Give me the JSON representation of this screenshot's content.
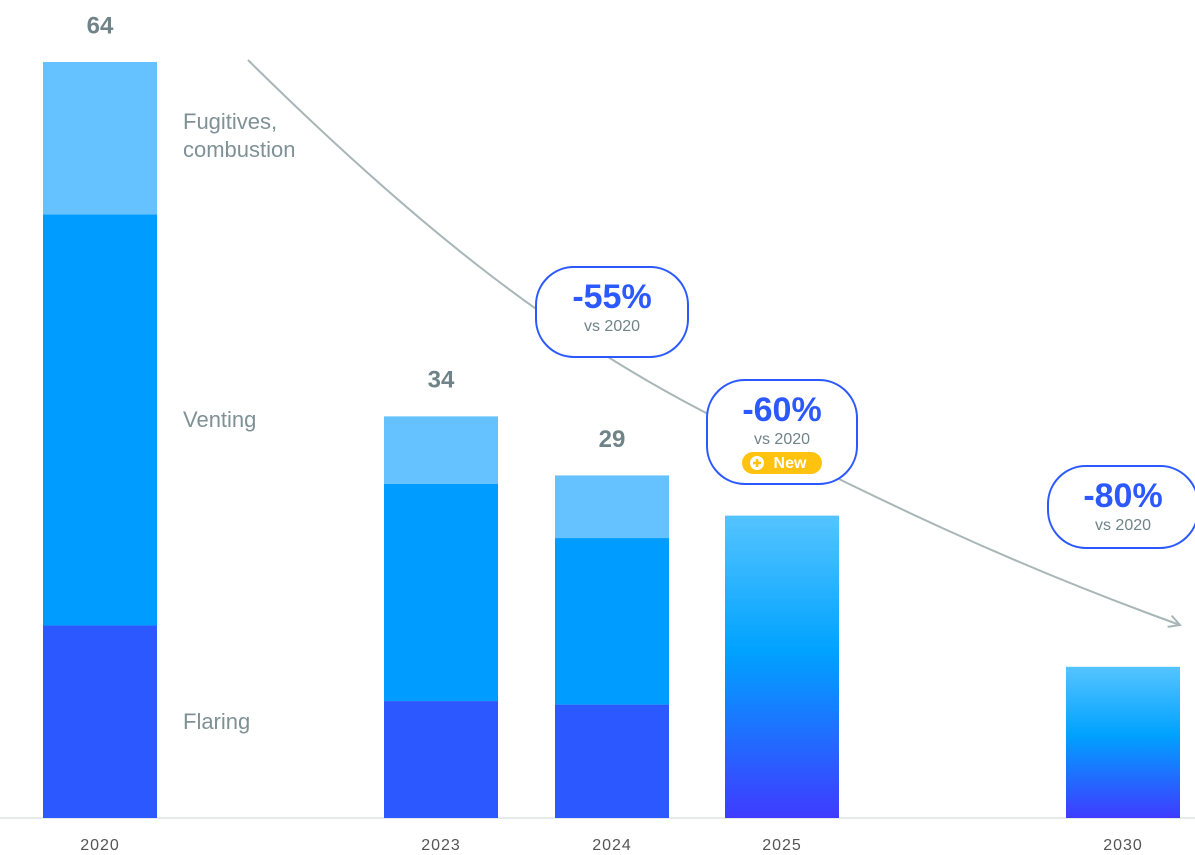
{
  "chart_data": {
    "type": "bar",
    "stacked": true,
    "categories": [
      "2020",
      "2023",
      "2024",
      "2025",
      "2030"
    ],
    "series": [
      {
        "name": "Flaring",
        "color": "#2b59ff",
        "values": [
          16.3,
          9.9,
          9.6,
          null,
          null
        ]
      },
      {
        "name": "Venting",
        "color": "#009cff",
        "values": [
          34.8,
          18.4,
          14.1,
          null,
          null
        ]
      },
      {
        "name": "Fugitives, combustion",
        "color": "#66c2ff",
        "values": [
          12.9,
          5.7,
          5.3,
          null,
          null
        ]
      }
    ],
    "targets": {
      "values": [
        null,
        null,
        null,
        25.6,
        12.8
      ],
      "gradient": [
        "#55c4ff",
        "#00a2ff",
        "#3f3bff"
      ]
    },
    "totals": [
      64,
      34,
      29,
      null,
      null
    ],
    "ylim": [
      0,
      64
    ],
    "annotations": [
      {
        "text": "-55%",
        "sub": "vs 2020"
      },
      {
        "text": "-60%",
        "sub": "vs 2020",
        "badge": "New"
      },
      {
        "text": "-80%",
        "sub": "vs 2020"
      }
    ]
  }
}
